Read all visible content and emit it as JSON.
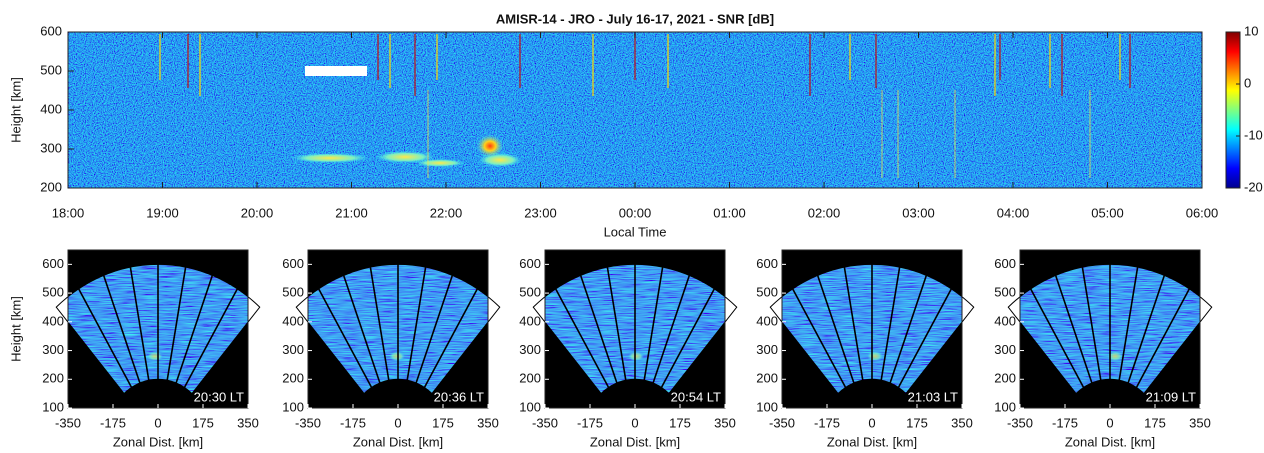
{
  "chart_data": [
    {
      "type": "heatmap",
      "title": "AMISR-14 - JRO - July 16-17, 2021 - SNR [dB]",
      "xlabel": "Local Time",
      "ylabel": "Height [km]",
      "xlim": [
        18,
        30
      ],
      "xticks": [
        {
          "value": 18,
          "label": "18:00"
        },
        {
          "value": 19,
          "label": "19:00"
        },
        {
          "value": 20,
          "label": "20:00"
        },
        {
          "value": 21,
          "label": "21:00"
        },
        {
          "value": 22,
          "label": "22:00"
        },
        {
          "value": 23,
          "label": "23:00"
        },
        {
          "value": 24,
          "label": "00:00"
        },
        {
          "value": 25,
          "label": "01:00"
        },
        {
          "value": 26,
          "label": "02:00"
        },
        {
          "value": 27,
          "label": "03:00"
        },
        {
          "value": 28,
          "label": "04:00"
        },
        {
          "value": 29,
          "label": "05:00"
        },
        {
          "value": 30,
          "label": "06:00"
        }
      ],
      "ylim": [
        200,
        600
      ],
      "yticks": [
        200,
        300,
        400,
        500,
        600
      ],
      "colormap": "jet",
      "clim": [
        -20,
        10
      ],
      "cticks": [
        -20,
        -10,
        0,
        10
      ]
    },
    {
      "type": "fan",
      "label": "20:30 LT",
      "xlabel": "Zonal Dist. [km]",
      "ylabel": "Height [km]",
      "xlim": [
        -350,
        350
      ],
      "xticks": [
        -350,
        -175,
        0,
        175,
        350
      ],
      "ylim": [
        100,
        650
      ],
      "yticks": [
        100,
        200,
        300,
        400,
        500,
        600
      ]
    },
    {
      "type": "fan",
      "label": "20:36 LT",
      "xlabel": "Zonal Dist. [km]",
      "xlim": [
        -350,
        350
      ],
      "xticks": [
        -350,
        -175,
        0,
        175,
        350
      ],
      "ylim": [
        100,
        650
      ],
      "yticks": [
        100,
        200,
        300,
        400,
        500,
        600
      ]
    },
    {
      "type": "fan",
      "label": "20:54 LT",
      "xlabel": "Zonal Dist. [km]",
      "xlim": [
        -350,
        350
      ],
      "xticks": [
        -350,
        -175,
        0,
        175,
        350
      ],
      "ylim": [
        100,
        650
      ],
      "yticks": [
        100,
        200,
        300,
        400,
        500,
        600
      ]
    },
    {
      "type": "fan",
      "label": "21:03 LT",
      "xlabel": "Zonal Dist. [km]",
      "xlim": [
        -350,
        350
      ],
      "xticks": [
        -350,
        -175,
        0,
        175,
        350
      ],
      "ylim": [
        100,
        650
      ],
      "yticks": [
        100,
        200,
        300,
        400,
        500,
        600
      ]
    },
    {
      "type": "fan",
      "label": "21:09 LT",
      "xlabel": "Zonal Dist. [km]",
      "xlim": [
        -350,
        350
      ],
      "xticks": [
        -350,
        -175,
        0,
        175,
        350
      ],
      "ylim": [
        100,
        650
      ],
      "yticks": [
        100,
        200,
        300,
        400,
        500,
        600
      ]
    }
  ]
}
